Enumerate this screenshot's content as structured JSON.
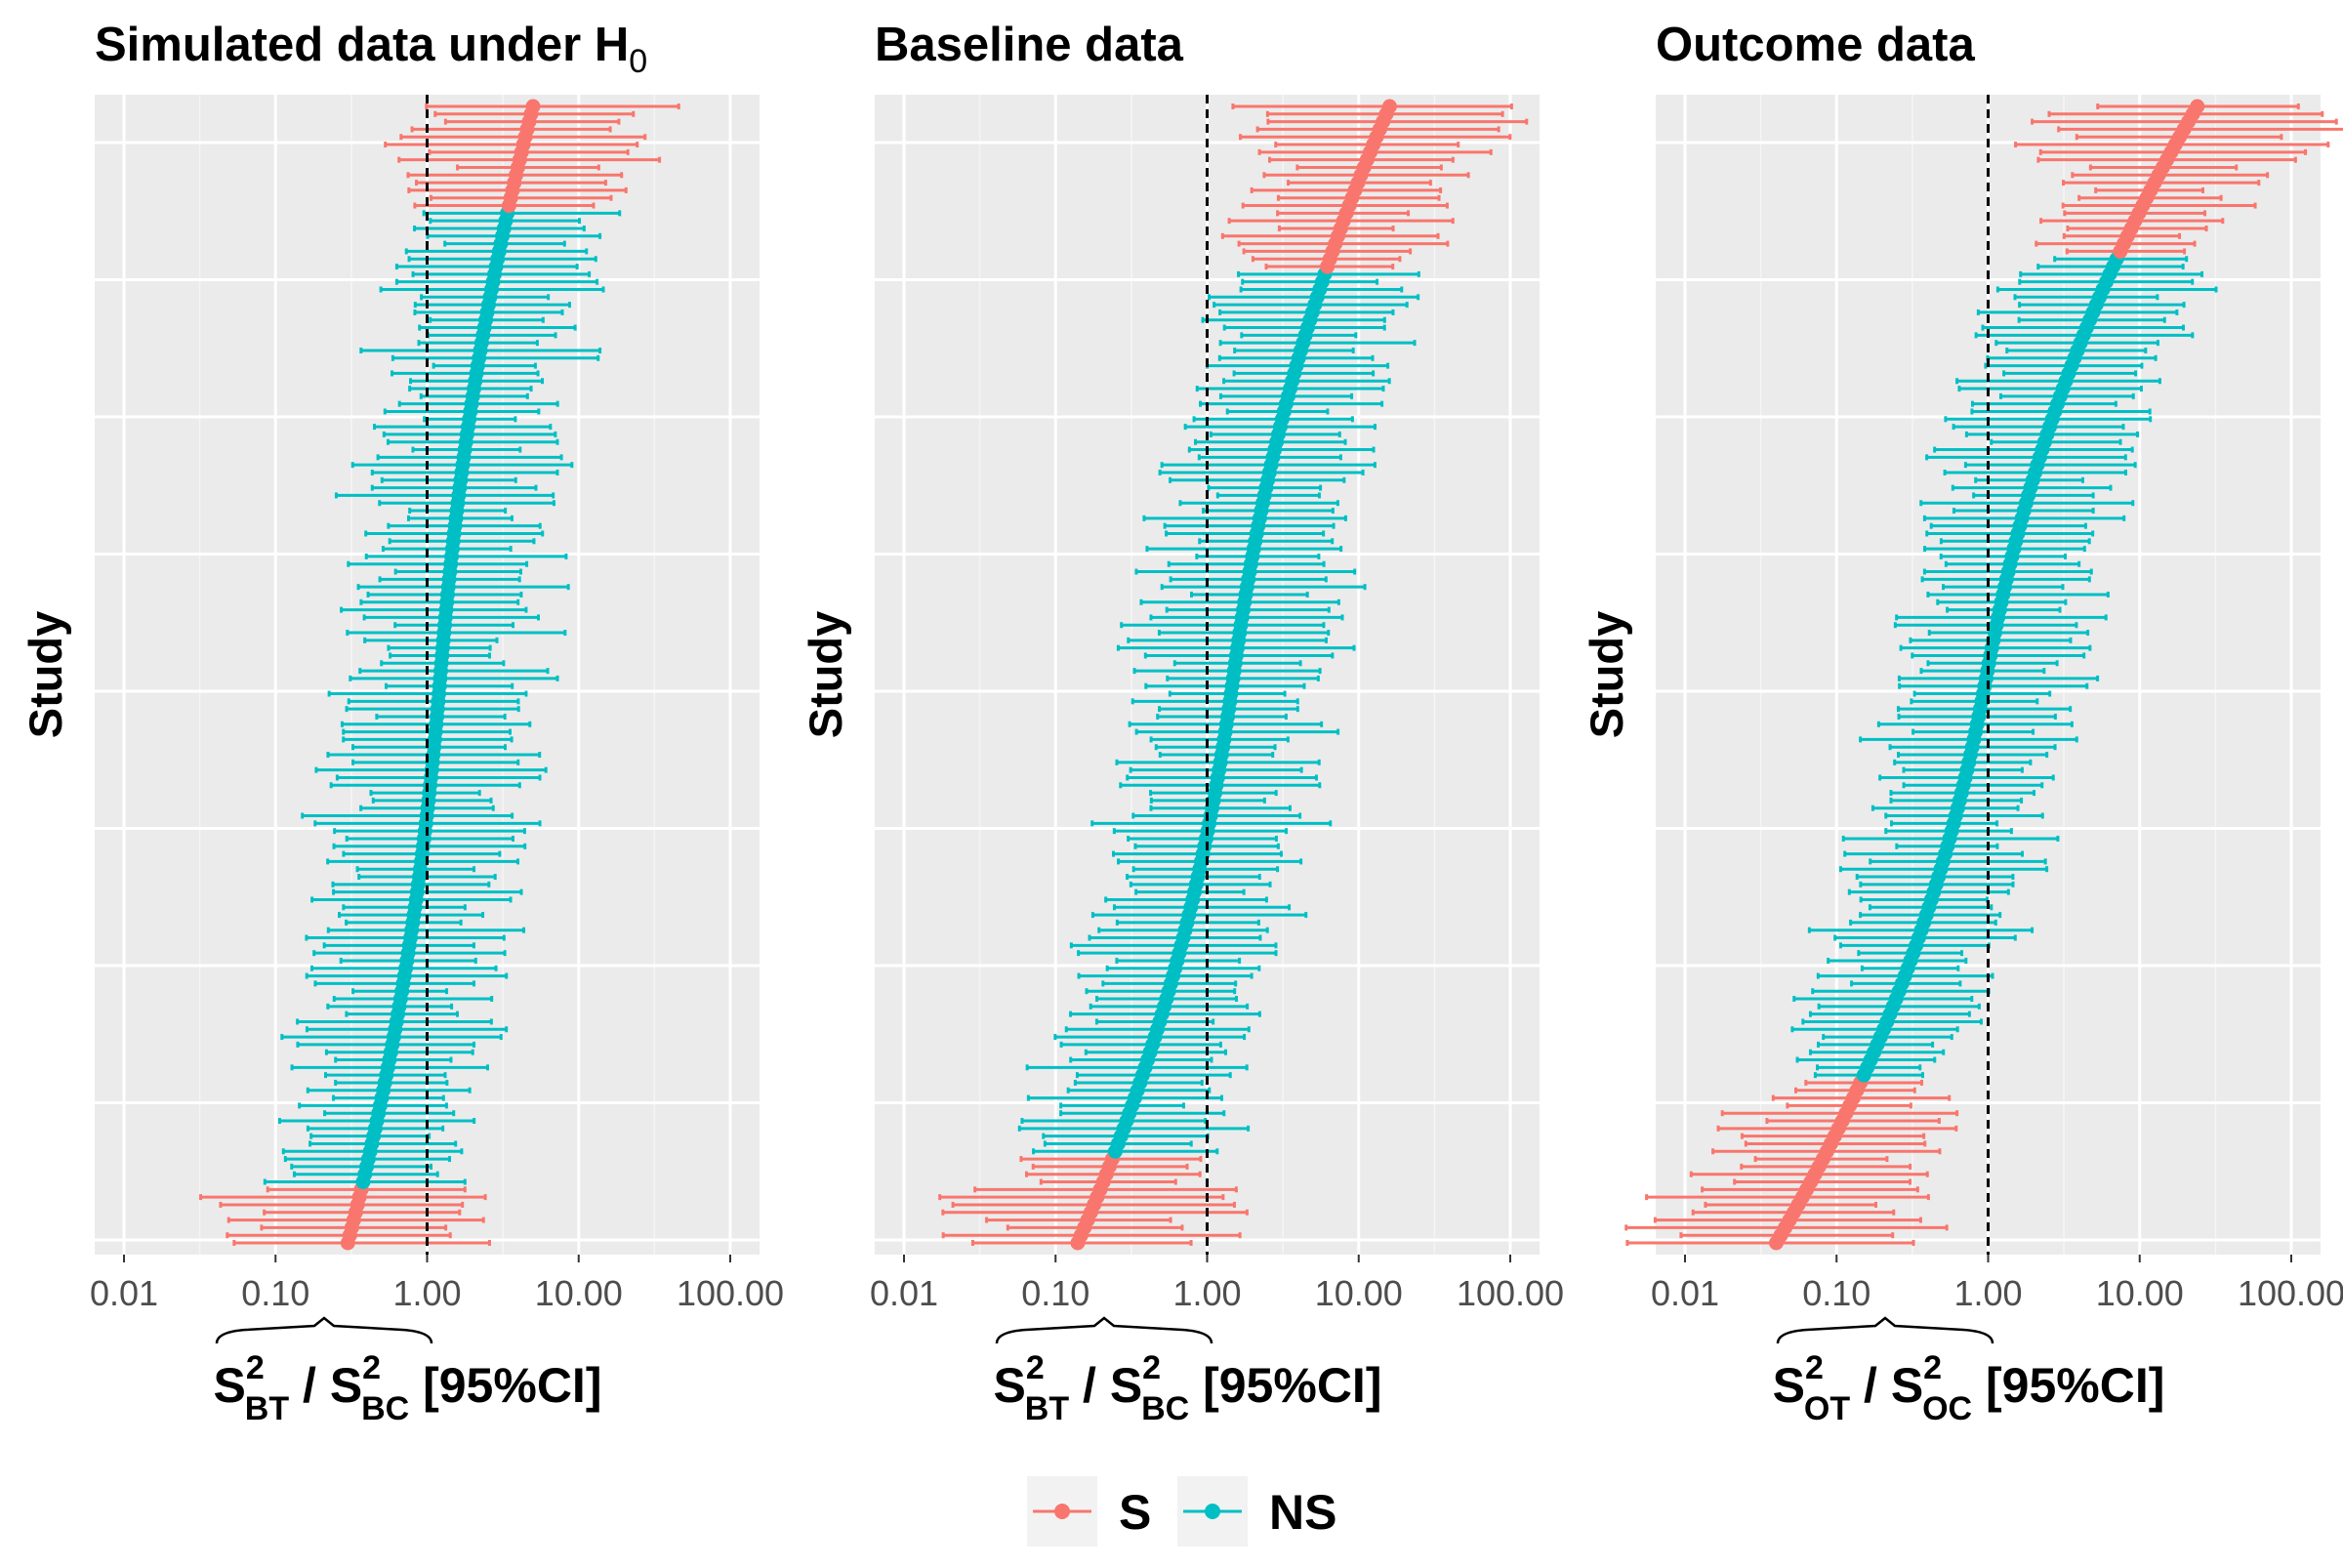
{
  "chart_data": [
    {
      "type": "forest",
      "title": "Simulated data under H",
      "title_subscript": "0",
      "ylabel": "Study",
      "xlabel": {
        "num": "S",
        "num_sup": "2",
        "num_sub": "BT",
        "sep": " / ",
        "den": "S",
        "den_sup": "2",
        "den_sub": "BC",
        "suffix": " [95%CI]"
      },
      "xscale": "log",
      "xlim": [
        0.01,
        100
      ],
      "xticks": [
        "0.01",
        "0.10",
        "1.00",
        "10.00",
        "100.00"
      ],
      "reference_line": 1,
      "n_studies": 150,
      "estimate_range": [
        0.3,
        5.0
      ],
      "s_counts": {
        "top": 14,
        "bottom": 8
      }
    },
    {
      "type": "forest",
      "title": "Baseline data",
      "title_subscript": "",
      "ylabel": "Study",
      "xlabel": {
        "num": "S",
        "num_sup": "2",
        "num_sub": "BT",
        "sep": " / ",
        "den": "S",
        "den_sup": "2",
        "den_sub": "BC",
        "suffix": " [95%CI]"
      },
      "xscale": "log",
      "xlim": [
        0.01,
        100
      ],
      "xticks": [
        "0.01",
        "0.10",
        "1.00",
        "10.00",
        "100.00"
      ],
      "reference_line": 1,
      "n_studies": 150,
      "estimate_range": [
        0.14,
        16.0
      ],
      "s_counts": {
        "top": 22,
        "bottom": 12
      }
    },
    {
      "type": "forest",
      "title": "Outcome data",
      "title_subscript": "",
      "ylabel": "Study",
      "xlabel": {
        "num": "S",
        "num_sup": "2",
        "num_sub": "OT",
        "sep": " / ",
        "den": "S",
        "den_sup": "2",
        "den_sub": "OC",
        "suffix": " [95%CI]"
      },
      "xscale": "log",
      "xlim": [
        0.01,
        100
      ],
      "xticks": [
        "0.01",
        "0.10",
        "1.00",
        "10.00",
        "100.00"
      ],
      "reference_line": 1,
      "n_studies": 150,
      "estimate_range": [
        0.04,
        24.0
      ],
      "s_counts": {
        "top": 20,
        "bottom": 22
      }
    }
  ],
  "legend": {
    "placement": "bottom",
    "items": [
      {
        "label": "S",
        "color": "#F8766D"
      },
      {
        "label": "NS",
        "color": "#00BFC4"
      }
    ]
  },
  "colors": {
    "panel_bg": "#EBEBEB",
    "grid": "#FFFFFF",
    "S": "#F8766D",
    "NS": "#00BFC4"
  }
}
